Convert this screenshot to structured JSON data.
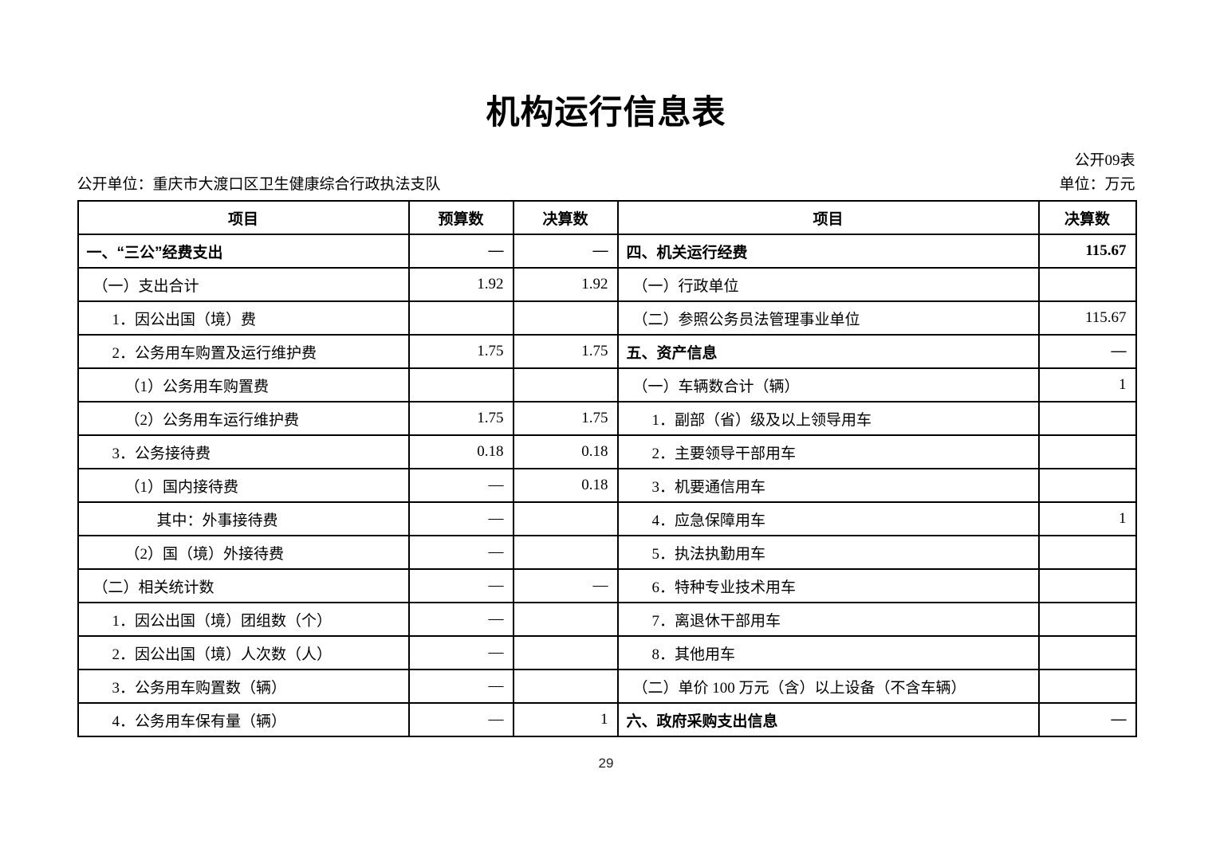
{
  "page": {
    "title": "机构运行信息表",
    "table_code": "公开09表",
    "org_line": "公开单位：重庆市大渡口区卫生健康综合行政执法支队",
    "unit_note": "单位：万元",
    "page_number": "29"
  },
  "table": {
    "headers": {
      "item_left": "项目",
      "budget": "预算数",
      "final": "决算数",
      "item_right": "项目",
      "final_right": "决算数"
    },
    "rows": [
      {
        "left": {
          "label": "一、“三公”经费支出",
          "indent": 0,
          "bold": true,
          "budget": "—",
          "final": "—"
        },
        "right": {
          "label": "四、机关运行经费",
          "indent": 0,
          "bold": true,
          "final": "115.67"
        }
      },
      {
        "left": {
          "label": "（一）支出合计",
          "indent": 1,
          "bold": false,
          "budget": "1.92",
          "final": "1.92"
        },
        "right": {
          "label": "（一）行政单位",
          "indent": 1,
          "bold": false,
          "final": ""
        }
      },
      {
        "left": {
          "label": "1．因公出国（境）费",
          "indent": 2,
          "bold": false,
          "budget": "",
          "final": ""
        },
        "right": {
          "label": "（二）参照公务员法管理事业单位",
          "indent": 1,
          "bold": false,
          "final": "115.67"
        }
      },
      {
        "left": {
          "label": "2．公务用车购置及运行维护费",
          "indent": 2,
          "bold": false,
          "budget": "1.75",
          "final": "1.75"
        },
        "right": {
          "label": "五、资产信息",
          "indent": 0,
          "bold": true,
          "final": "—"
        }
      },
      {
        "left": {
          "label": "（1）公务用车购置费",
          "indent": 3,
          "bold": false,
          "budget": "",
          "final": ""
        },
        "right": {
          "label": "（一）车辆数合计（辆）",
          "indent": 1,
          "bold": false,
          "final": "1"
        }
      },
      {
        "left": {
          "label": "（2）公务用车运行维护费",
          "indent": 3,
          "bold": false,
          "budget": "1.75",
          "final": "1.75"
        },
        "right": {
          "label": "1．副部（省）级及以上领导用车",
          "indent": 2,
          "bold": false,
          "final": ""
        }
      },
      {
        "left": {
          "label": "3．公务接待费",
          "indent": 2,
          "bold": false,
          "budget": "0.18",
          "final": "0.18"
        },
        "right": {
          "label": "2．主要领导干部用车",
          "indent": 2,
          "bold": false,
          "final": ""
        }
      },
      {
        "left": {
          "label": "（1）国内接待费",
          "indent": 3,
          "bold": false,
          "budget": "—",
          "final": "0.18"
        },
        "right": {
          "label": "3．机要通信用车",
          "indent": 2,
          "bold": false,
          "final": ""
        }
      },
      {
        "left": {
          "label": "其中：外事接待费",
          "indent": 4,
          "bold": false,
          "budget": "—",
          "final": ""
        },
        "right": {
          "label": "4．应急保障用车",
          "indent": 2,
          "bold": false,
          "final": "1"
        }
      },
      {
        "left": {
          "label": "（2）国（境）外接待费",
          "indent": 3,
          "bold": false,
          "budget": "—",
          "final": ""
        },
        "right": {
          "label": "5．执法执勤用车",
          "indent": 2,
          "bold": false,
          "final": ""
        }
      },
      {
        "left": {
          "label": "（二）相关统计数",
          "indent": 1,
          "bold": false,
          "budget": "—",
          "final": "—"
        },
        "right": {
          "label": "6．特种专业技术用车",
          "indent": 2,
          "bold": false,
          "final": ""
        }
      },
      {
        "left": {
          "label": "1．因公出国（境）团组数（个）",
          "indent": 2,
          "bold": false,
          "budget": "—",
          "final": ""
        },
        "right": {
          "label": "7．离退休干部用车",
          "indent": 2,
          "bold": false,
          "final": ""
        }
      },
      {
        "left": {
          "label": "2．因公出国（境）人次数（人）",
          "indent": 2,
          "bold": false,
          "budget": "—",
          "final": ""
        },
        "right": {
          "label": "8．其他用车",
          "indent": 2,
          "bold": false,
          "final": ""
        }
      },
      {
        "left": {
          "label": "3．公务用车购置数（辆）",
          "indent": 2,
          "bold": false,
          "budget": "—",
          "final": ""
        },
        "right": {
          "label": "（二）单价 100 万元（含）以上设备（不含车辆）",
          "indent": 1,
          "bold": false,
          "final": ""
        }
      },
      {
        "left": {
          "label": "4．公务用车保有量（辆）",
          "indent": 2,
          "bold": false,
          "budget": "—",
          "final": "1"
        },
        "right": {
          "label": "六、政府采购支出信息",
          "indent": 0,
          "bold": true,
          "final": "—"
        }
      }
    ]
  }
}
